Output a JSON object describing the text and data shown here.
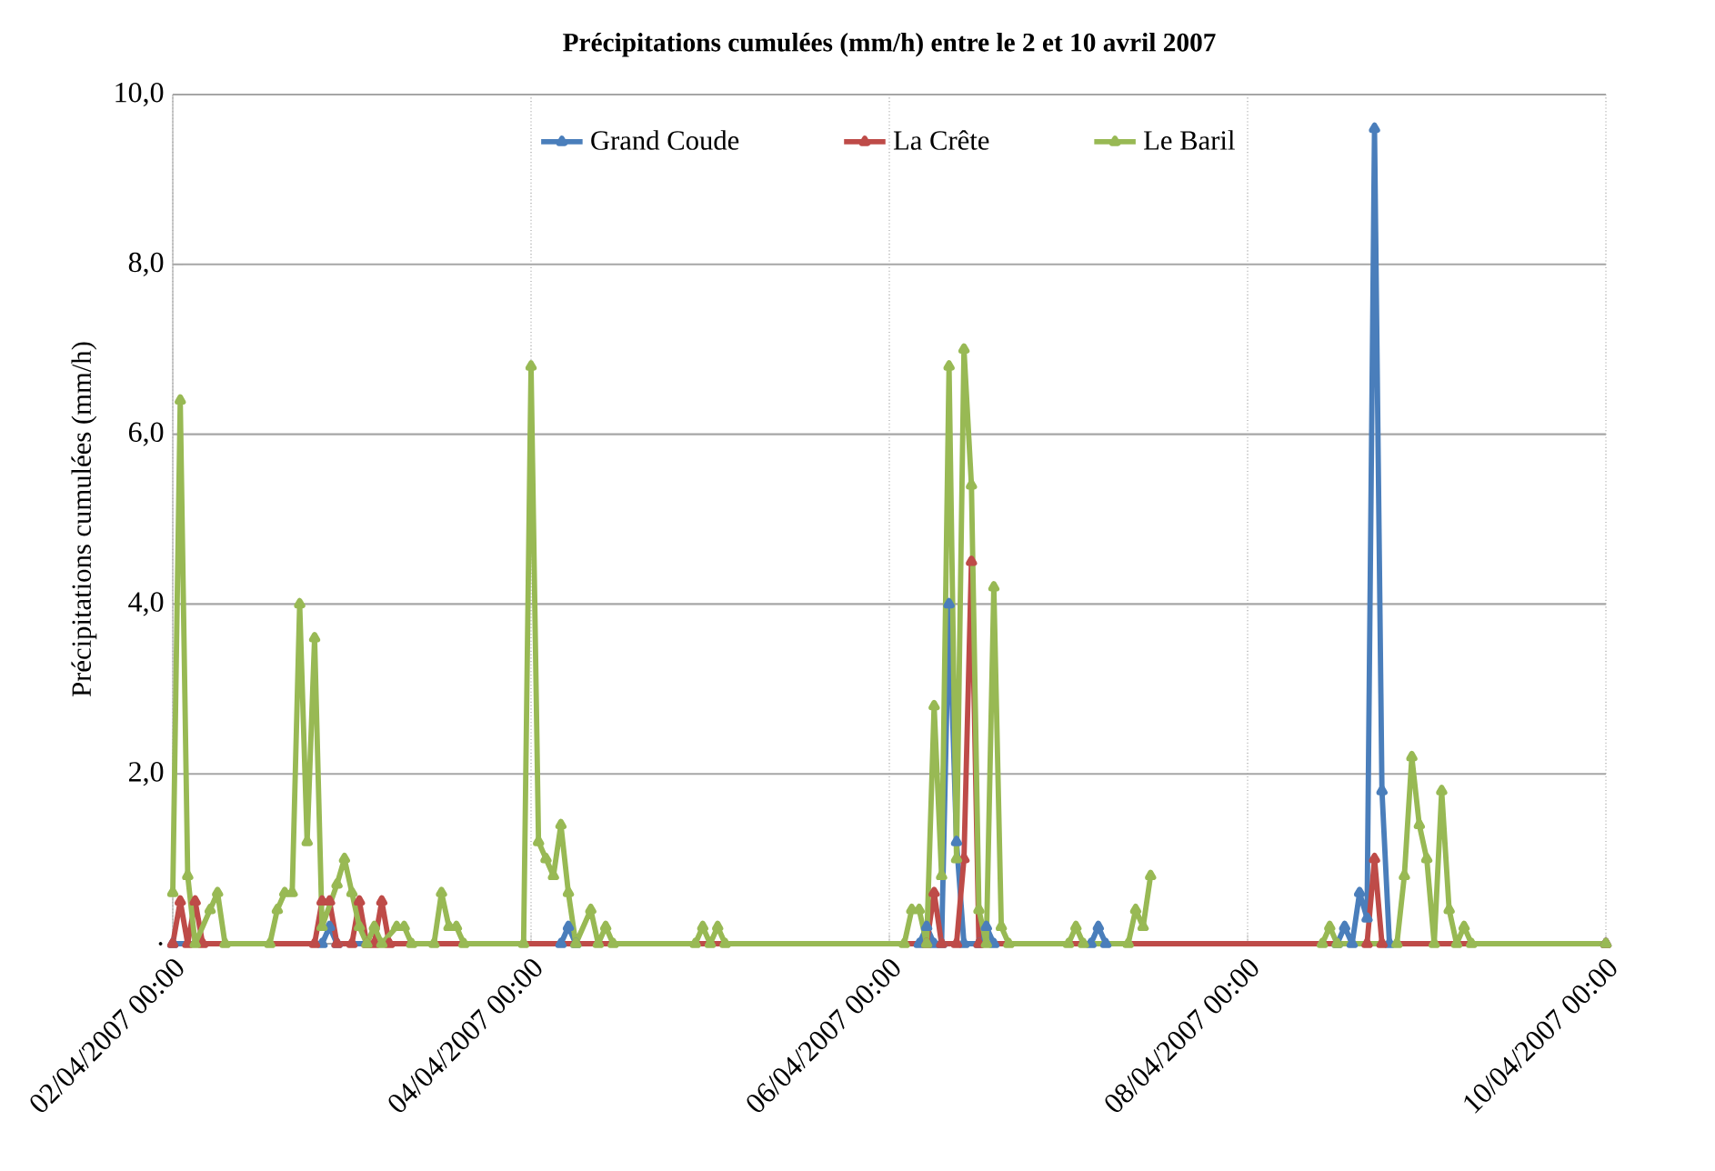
{
  "chart_data": {
    "type": "line",
    "title": "**Précipitations cumulées (mm/h) entre le 2 et 10 avril 2007**",
    "ylabel": "Précipitations cumulées (mm/h)",
    "xlim": [
      "2007-04-02T00:00",
      "2007-04-10T00:00"
    ],
    "xticks": [
      {
        "value": "2007-04-02T00:00",
        "label": "02/04/2007 00:00"
      },
      {
        "value": "2007-04-04T00:00",
        "label": "04/04/2007 00:00"
      },
      {
        "value": "2007-04-06T00:00",
        "label": "06/04/2007 00:00"
      },
      {
        "value": "2007-04-08T00:00",
        "label": "08/04/2007 00:00"
      },
      {
        "value": "2007-04-10T00:00",
        "label": "10/04/2007 00:00"
      }
    ],
    "ylim": [
      0,
      10
    ],
    "yticks": [
      {
        "value": 0,
        "label": "."
      },
      {
        "value": 2,
        "label": "2,0"
      },
      {
        "value": 4,
        "label": "4,0"
      },
      {
        "value": 6,
        "label": "6,0"
      },
      {
        "value": 8,
        "label": "8,0"
      },
      {
        "value": 10,
        "label": "10,0"
      }
    ],
    "grid": true,
    "legend": "top",
    "marker": "triangle",
    "line_style": "solid",
    "series": [
      {
        "name": "Grand Coude",
        "color": "#4a7ebb",
        "x": [
          "2007-04-02T00:00",
          "2007-04-02T20:00",
          "2007-04-02T21:00",
          "2007-04-02T22:00",
          "2007-04-04T04:00",
          "2007-04-04T05:00",
          "2007-04-04T06:00",
          "2007-04-06T04:00",
          "2007-04-06T05:00",
          "2007-04-06T06:00",
          "2007-04-06T07:00",
          "2007-04-06T08:00",
          "2007-04-06T09:00",
          "2007-04-06T10:00",
          "2007-04-06T12:00",
          "2007-04-06T13:00",
          "2007-04-06T14:00",
          "2007-04-07T03:00",
          "2007-04-07T04:00",
          "2007-04-07T05:00",
          "2007-04-08T12:00",
          "2007-04-08T13:00",
          "2007-04-08T14:00",
          "2007-04-08T15:00",
          "2007-04-08T16:00",
          "2007-04-08T17:00",
          "2007-04-08T18:00",
          "2007-04-08T19:00",
          "2007-04-10T00:00"
        ],
        "values": [
          0,
          0,
          0.2,
          0,
          0,
          0.2,
          0,
          0,
          0.2,
          0,
          0,
          4.0,
          1.2,
          0,
          0,
          0.2,
          0,
          0,
          0.2,
          0,
          0,
          0.2,
          0,
          0.6,
          0.3,
          9.6,
          1.8,
          0,
          0
        ]
      },
      {
        "name": "La Crête",
        "color": "#be4b48",
        "x": [
          "2007-04-02T00:00",
          "2007-04-02T01:00",
          "2007-04-02T02:00",
          "2007-04-02T03:00",
          "2007-04-02T04:00",
          "2007-04-02T19:00",
          "2007-04-02T20:00",
          "2007-04-02T21:00",
          "2007-04-02T22:00",
          "2007-04-03T00:00",
          "2007-04-03T01:00",
          "2007-04-03T02:00",
          "2007-04-03T03:00",
          "2007-04-03T04:00",
          "2007-04-03T05:00",
          "2007-04-06T05:00",
          "2007-04-06T06:00",
          "2007-04-06T07:00",
          "2007-04-06T09:00",
          "2007-04-06T10:00",
          "2007-04-06T11:00",
          "2007-04-06T12:00",
          "2007-04-08T16:00",
          "2007-04-08T17:00",
          "2007-04-08T18:00",
          "2007-04-10T00:00"
        ],
        "values": [
          0,
          0.5,
          0,
          0.5,
          0,
          0,
          0.5,
          0.5,
          0,
          0,
          0.5,
          0,
          0,
          0.5,
          0,
          0,
          0.6,
          0,
          0,
          1.0,
          4.5,
          0,
          0,
          1.0,
          0,
          0
        ]
      },
      {
        "name": "Le Baril",
        "color": "#98b954",
        "x": [
          "2007-04-02T00:00",
          "2007-04-02T01:00",
          "2007-04-02T02:00",
          "2007-04-02T03:00",
          "2007-04-02T05:00",
          "2007-04-02T06:00",
          "2007-04-02T07:00",
          "2007-04-02T13:00",
          "2007-04-02T14:00",
          "2007-04-02T15:00",
          "2007-04-02T16:00",
          "2007-04-02T17:00",
          "2007-04-02T18:00",
          "2007-04-02T19:00",
          "2007-04-02T20:00",
          "2007-04-02T22:00",
          "2007-04-02T23:00",
          "2007-04-03T00:00",
          "2007-04-03T01:00",
          "2007-04-03T02:00",
          "2007-04-03T03:00",
          "2007-04-03T04:00",
          "2007-04-03T06:00",
          "2007-04-03T07:00",
          "2007-04-03T08:00",
          "2007-04-03T11:00",
          "2007-04-03T12:00",
          "2007-04-03T13:00",
          "2007-04-03T14:00",
          "2007-04-03T15:00",
          "2007-04-03T23:00",
          "2007-04-04T00:00",
          "2007-04-04T01:00",
          "2007-04-04T02:00",
          "2007-04-04T03:00",
          "2007-04-04T04:00",
          "2007-04-04T05:00",
          "2007-04-04T06:00",
          "2007-04-04T08:00",
          "2007-04-04T09:00",
          "2007-04-04T10:00",
          "2007-04-04T11:00",
          "2007-04-04T22:00",
          "2007-04-04T23:00",
          "2007-04-05T00:00",
          "2007-04-05T01:00",
          "2007-04-05T02:00",
          "2007-04-06T02:00",
          "2007-04-06T03:00",
          "2007-04-06T04:00",
          "2007-04-06T05:00",
          "2007-04-06T06:00",
          "2007-04-06T07:00",
          "2007-04-06T08:00",
          "2007-04-06T09:00",
          "2007-04-06T10:00",
          "2007-04-06T11:00",
          "2007-04-06T12:00",
          "2007-04-06T13:00",
          "2007-04-06T14:00",
          "2007-04-06T15:00",
          "2007-04-06T16:00",
          "2007-04-07T00:00",
          "2007-04-07T01:00",
          "2007-04-07T02:00",
          "2007-04-07T08:00",
          "2007-04-07T09:00",
          "2007-04-07T10:00",
          "2007-04-07T11:00",
          "2007-04-07T12:00",
          "2007-04-08T10:00",
          "2007-04-08T11:00",
          "2007-04-08T12:00",
          "2007-04-08T20:00",
          "2007-04-08T21:00",
          "2007-04-08T22:00",
          "2007-04-08T23:00",
          "2007-04-09T00:00",
          "2007-04-09T01:00",
          "2007-04-09T02:00",
          "2007-04-09T03:00",
          "2007-04-09T04:00",
          "2007-04-09T05:00",
          "2007-04-09T06:00",
          "2007-04-10T00:00"
        ],
        "values": [
          0.6,
          6.4,
          0.8,
          0,
          0.4,
          0.6,
          0,
          0,
          0.4,
          0.6,
          0.6,
          4.0,
          1.2,
          3.6,
          0.2,
          0.7,
          1.0,
          0.6,
          0.2,
          0,
          0.2,
          0,
          0.2,
          0.2,
          0,
          0,
          0.6,
          0.2,
          0.2,
          0,
          0,
          6.8,
          1.2,
          1.0,
          0.8,
          1.4,
          0.6,
          0,
          0.4,
          0,
          0.2,
          0,
          0,
          0.2,
          0,
          0.2,
          0,
          0,
          0.4,
          0.4,
          0,
          2.8,
          0.8,
          6.8,
          1.0,
          7.0,
          5.4,
          0.4,
          0,
          4.2,
          0.2,
          0,
          0,
          0.2,
          0,
          0,
          0.4,
          0.2,
          0.8,
          null,
          0,
          0.2,
          0,
          0,
          0.8,
          2.2,
          1.4,
          1.0,
          0,
          1.8,
          0.4,
          0,
          0.2,
          0,
          0
        ]
      }
    ]
  }
}
